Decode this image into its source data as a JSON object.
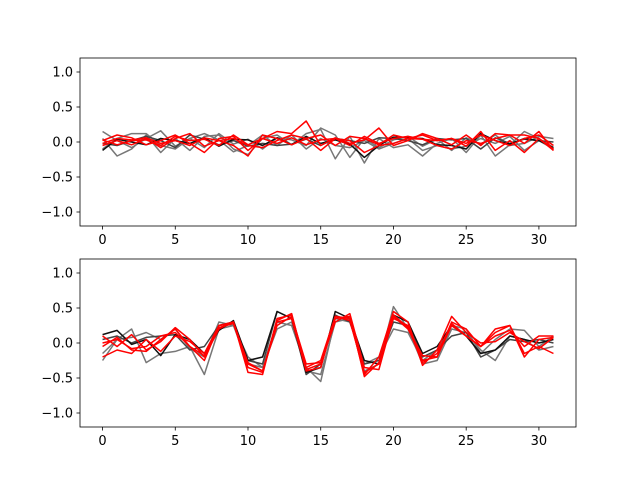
{
  "chart_data": [
    {
      "type": "line",
      "title": "",
      "xlabel": "",
      "ylabel": "",
      "xlim": [
        -1.55,
        32.55
      ],
      "ylim": [
        -1.2,
        1.2
      ],
      "xticks": [
        0,
        5,
        10,
        15,
        20,
        25,
        30
      ],
      "yticks": [
        1.0,
        0.5,
        0.0,
        -0.5,
        -1.0
      ],
      "ytick_labels": [
        "1.0",
        "0.5",
        "0.0",
        "−0.5",
        "−1.0"
      ],
      "grid": false,
      "series": [
        {
          "color": "#777777",
          "values": [
            0.15,
            0.02,
            -0.08,
            0.05,
            0.16,
            -0.06,
            0.05,
            -0.08,
            0.12,
            -0.03,
            0.04,
            -0.1,
            0.06,
            0.03,
            -0.05,
            0.2,
            0.1,
            -0.22,
            0.05,
            -0.08,
            0.03,
            0.08,
            -0.06,
            0.04,
            -0.12,
            0.06,
            -0.03,
            0.1,
            -0.05,
            -0.02,
            0.08,
            0.05
          ]
        },
        {
          "color": "#777777",
          "values": [
            0.05,
            -0.2,
            -0.1,
            0.1,
            -0.15,
            0.05,
            -0.12,
            0.08,
            0.1,
            -0.1,
            -0.18,
            0.05,
            0.1,
            -0.04,
            0.12,
            0.18,
            -0.24,
            0.08,
            -0.3,
            0.05,
            -0.08,
            -0.04,
            -0.2,
            -0.02,
            0.05,
            -0.15,
            0.1,
            -0.2,
            -0.04,
            0.15,
            0.05,
            -0.08
          ]
        },
        {
          "color": "#777777",
          "values": [
            -0.1,
            0.05,
            0.12,
            0.12,
            -0.05,
            -0.1,
            0.05,
            0.12,
            0.03,
            -0.14,
            -0.05,
            0.1,
            -0.05,
            0.1,
            -0.1,
            0.05,
            -0.05,
            -0.08,
            0.02,
            -0.1,
            -0.02,
            0.05,
            -0.12,
            -0.05,
            -0.1,
            -0.06,
            0.05,
            -0.02,
            0.08,
            -0.12,
            0.02,
            -0.1
          ]
        },
        {
          "color": "#444444",
          "values": [
            -0.02,
            -0.05,
            0.02,
            0.08,
            0.02,
            -0.08,
            0.1,
            0.04,
            -0.04,
            0.02,
            -0.06,
            -0.02,
            -0.05,
            -0.03,
            0.04,
            -0.05,
            0.05,
            0.02,
            -0.02,
            0.06,
            0.05,
            0.02,
            -0.04,
            0.05,
            0.03,
            0.05,
            -0.1,
            0.06,
            -0.02,
            0.04,
            0.02,
            0.0
          ]
        },
        {
          "color": "#111111",
          "values": [
            -0.12,
            0.04,
            0.0,
            -0.04,
            0.05,
            0.02,
            -0.02,
            0.06,
            -0.06,
            0.04,
            0.03,
            -0.05,
            0.06,
            -0.04,
            0.08,
            -0.02,
            0.03,
            -0.03,
            -0.22,
            -0.05,
            0.07,
            0.06,
            0.05,
            -0.04,
            -0.05,
            -0.1,
            0.12,
            0.02,
            -0.03,
            0.05,
            0.02,
            -0.08
          ]
        },
        {
          "color": "#ff0000",
          "values": [
            0.02,
            0.1,
            0.06,
            -0.04,
            0.02,
            0.1,
            -0.02,
            -0.15,
            0.05,
            0.08,
            -0.12,
            0.05,
            0.15,
            0.12,
            0.3,
            -0.05,
            0.06,
            -0.02,
            0.03,
            0.2,
            -0.05,
            0.02,
            0.12,
            0.05,
            -0.04,
            0.1,
            -0.05,
            0.12,
            0.1,
            -0.02,
            0.15,
            -0.12
          ]
        },
        {
          "color": "#ff0000",
          "values": [
            -0.05,
            0.02,
            -0.04,
            0.05,
            -0.08,
            0.05,
            0.12,
            -0.06,
            0.02,
            -0.05,
            -0.2,
            0.1,
            0.05,
            -0.04,
            0.05,
            -0.12,
            0.05,
            0.02,
            -0.15,
            -0.05,
            -0.02,
            0.05,
            0.1,
            0.02,
            0.05,
            -0.06,
            0.15,
            -0.12,
            0.02,
            -0.15,
            0.05,
            -0.1
          ]
        },
        {
          "color": "#ff0000",
          "values": [
            0.03,
            -0.04,
            0.02,
            0.03,
            -0.05,
            0.08,
            0.02,
            0.04,
            -0.05,
            0.1,
            -0.04,
            0.05,
            -0.02,
            0.06,
            -0.04,
            0.03,
            0.05,
            -0.05,
            0.08,
            -0.02,
            0.05,
            0.08,
            0.04,
            0.02,
            0.05,
            -0.02,
            0.1,
            0.02,
            -0.05,
            0.05,
            0.1,
            -0.05
          ]
        },
        {
          "color": "#ff0000",
          "values": [
            -0.02,
            0.05,
            0.03,
            0.06,
            -0.02,
            0.02,
            -0.05,
            0.06,
            0.02,
            0.05,
            -0.05,
            -0.08,
            0.02,
            0.1,
            0.05,
            0.1,
            -0.05,
            0.08,
            0.05,
            -0.04,
            0.1,
            0.05,
            0.04,
            -0.05,
            -0.1,
            0.02,
            -0.02,
            0.05,
            0.1,
            0.1,
            0.05,
            -0.12
          ]
        }
      ]
    },
    {
      "type": "line",
      "title": "",
      "xlabel": "",
      "ylabel": "",
      "xlim": [
        -1.55,
        32.55
      ],
      "ylim": [
        -1.2,
        1.2
      ],
      "xticks": [
        0,
        5,
        10,
        15,
        20,
        25,
        30
      ],
      "yticks": [
        1.0,
        0.5,
        0.0,
        -0.5,
        -1.0
      ],
      "ytick_labels": [
        "1.0",
        "0.5",
        "0.0",
        "−0.5",
        "−1.0"
      ],
      "grid": false,
      "series": [
        {
          "color": "#777777",
          "values": [
            -0.25,
            0.05,
            0.2,
            -0.28,
            -0.15,
            -0.12,
            -0.05,
            -0.45,
            0.2,
            0.25,
            -0.3,
            -0.35,
            0.2,
            0.3,
            -0.4,
            -0.45,
            0.3,
            0.35,
            -0.4,
            -0.3,
            0.52,
            0.2,
            -0.3,
            -0.25,
            0.2,
            0.15,
            -0.1,
            -0.25,
            0.1,
            0.05,
            -0.1,
            -0.05
          ]
        },
        {
          "color": "#777777",
          "values": [
            -0.15,
            0.05,
            0.08,
            0.15,
            0.05,
            0.2,
            -0.08,
            -0.2,
            0.3,
            0.25,
            -0.2,
            -0.35,
            0.3,
            0.25,
            -0.35,
            -0.55,
            0.35,
            0.3,
            -0.3,
            -0.2,
            0.2,
            0.15,
            -0.25,
            -0.1,
            0.25,
            0.2,
            -0.15,
            0.05,
            0.2,
            0.18,
            -0.05,
            0.1
          ]
        },
        {
          "color": "#444444",
          "values": [
            0.05,
            0.1,
            0.0,
            0.08,
            0.1,
            0.12,
            -0.1,
            -0.05,
            0.25,
            0.3,
            -0.25,
            -0.3,
            0.45,
            0.35,
            -0.45,
            -0.3,
            0.4,
            0.3,
            -0.3,
            -0.25,
            0.3,
            0.25,
            -0.2,
            -0.1,
            0.1,
            0.15,
            -0.2,
            -0.1,
            0.05,
            0.02,
            0.05,
            0.0
          ]
        },
        {
          "color": "#111111",
          "values": [
            0.12,
            0.18,
            -0.02,
            0.05,
            -0.18,
            0.12,
            0.05,
            -0.15,
            0.18,
            0.32,
            -0.25,
            -0.2,
            0.45,
            0.35,
            -0.42,
            -0.35,
            0.45,
            0.35,
            -0.25,
            -0.3,
            0.4,
            0.3,
            -0.15,
            -0.05,
            0.25,
            0.1,
            -0.15,
            -0.1,
            0.1,
            0.05,
            0.0,
            0.05
          ]
        },
        {
          "color": "#ff0000",
          "values": [
            0.1,
            -0.05,
            0.12,
            -0.1,
            0.02,
            0.22,
            0.05,
            -0.2,
            0.2,
            0.3,
            -0.42,
            -0.45,
            0.35,
            0.4,
            -0.35,
            -0.25,
            0.38,
            0.35,
            -0.45,
            -0.2,
            0.45,
            0.3,
            -0.32,
            -0.1,
            0.38,
            0.15,
            0.0,
            0.02,
            0.15,
            0.02,
            -0.08,
            0.08
          ]
        },
        {
          "color": "#ff0000",
          "values": [
            0.0,
            0.05,
            -0.08,
            -0.05,
            0.1,
            0.15,
            -0.05,
            -0.25,
            0.25,
            0.3,
            -0.3,
            -0.4,
            0.3,
            0.35,
            -0.4,
            -0.35,
            0.38,
            0.32,
            -0.42,
            -0.3,
            0.35,
            0.25,
            -0.25,
            -0.2,
            0.25,
            0.1,
            -0.05,
            0.15,
            0.25,
            -0.15,
            -0.05,
            -0.15
          ]
        },
        {
          "color": "#ff0000",
          "values": [
            -0.05,
            0.08,
            -0.1,
            -0.12,
            0.05,
            0.2,
            -0.05,
            -0.18,
            0.22,
            0.28,
            -0.35,
            -0.42,
            0.32,
            0.42,
            -0.38,
            -0.3,
            0.35,
            0.38,
            -0.48,
            -0.28,
            0.4,
            0.22,
            -0.28,
            -0.15,
            0.28,
            0.1,
            -0.05,
            0.2,
            0.25,
            -0.2,
            0.05,
            0.08
          ]
        },
        {
          "color": "#ff0000",
          "values": [
            -0.2,
            -0.1,
            -0.15,
            0.05,
            -0.12,
            0.1,
            0.02,
            -0.15,
            0.25,
            0.28,
            -0.28,
            -0.4,
            0.25,
            0.38,
            -0.3,
            -0.28,
            0.3,
            0.42,
            -0.35,
            -0.38,
            0.38,
            0.2,
            -0.18,
            -0.2,
            0.3,
            0.2,
            -0.05,
            0.1,
            0.18,
            -0.05,
            0.1,
            0.1
          ]
        }
      ]
    }
  ]
}
